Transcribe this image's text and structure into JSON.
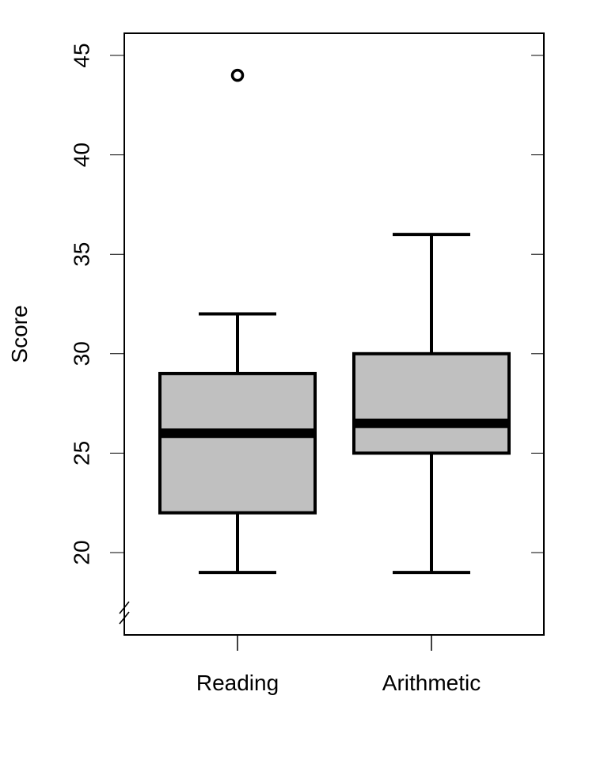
{
  "chart_data": {
    "type": "box",
    "title": "",
    "xlabel": "",
    "ylabel": "Score",
    "ylim": [
      16,
      46
    ],
    "y_ticks": [
      "20",
      "25",
      "30",
      "35",
      "40",
      "45"
    ],
    "y_axis_break": true,
    "categories": [
      "Reading",
      "Arithmetic"
    ],
    "boxes": [
      {
        "category": "Reading",
        "min": 19,
        "q1": 22,
        "median": 26,
        "q3": 29,
        "max": 32,
        "outliers": [
          44
        ]
      },
      {
        "category": "Arithmetic",
        "min": 19,
        "q1": 25,
        "median": 26.5,
        "q3": 30,
        "max": 36,
        "outliers": []
      }
    ],
    "box_color": "#c0c0c0",
    "grid": false,
    "legend": "none"
  }
}
